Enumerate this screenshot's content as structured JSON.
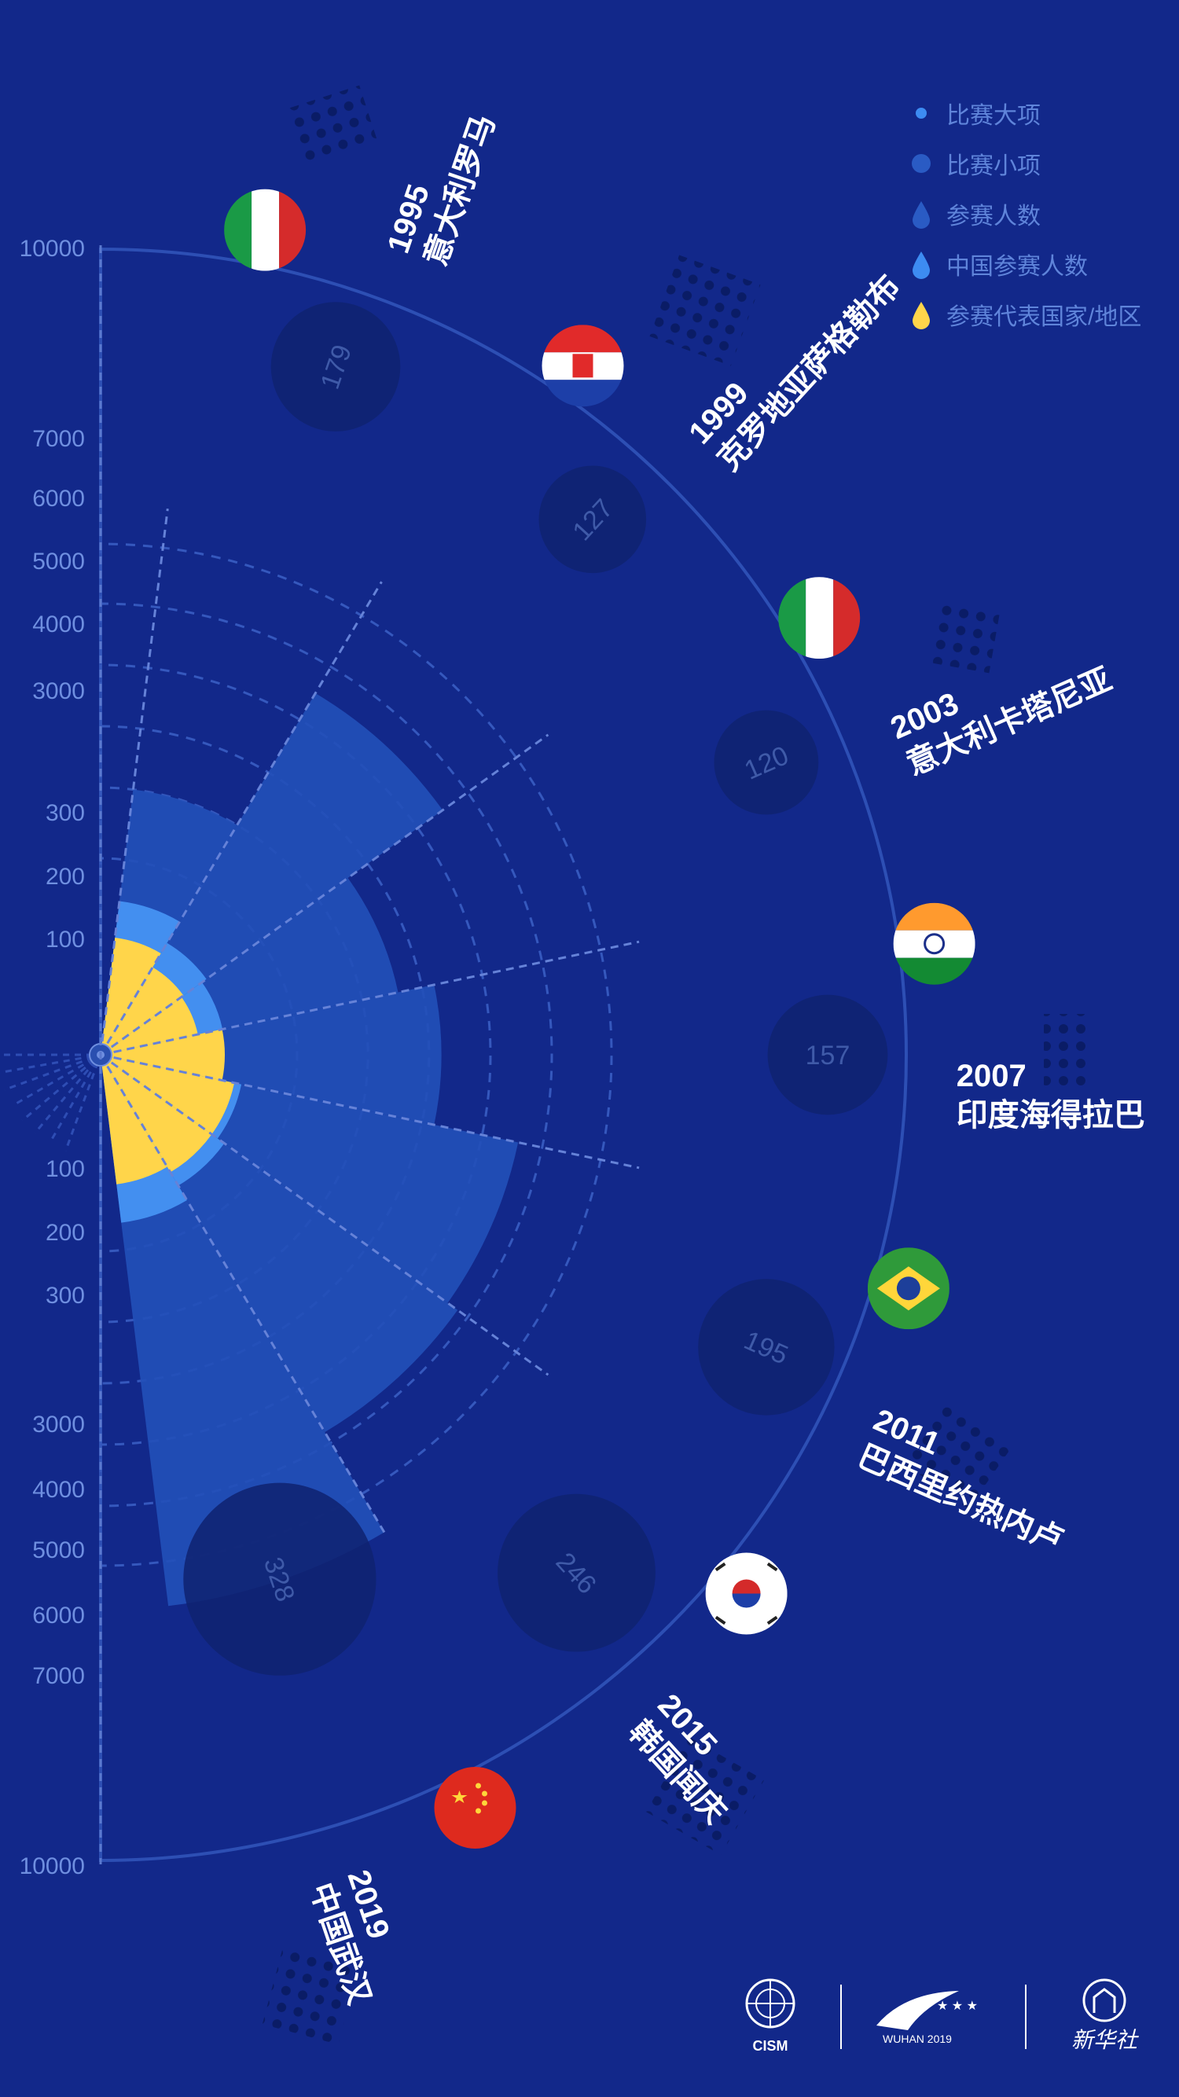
{
  "legend": {
    "items": [
      {
        "label": "比赛大项",
        "shape": "dot-small",
        "color": "#3d8cf2"
      },
      {
        "label": "比赛小项",
        "shape": "dot-large",
        "color": "#2a5bc4"
      },
      {
        "label": "参赛人数",
        "shape": "drop",
        "color": "#2a5bc4"
      },
      {
        "label": "中国参赛人数",
        "shape": "drop",
        "color": "#3d8cf2"
      },
      {
        "label": "参赛代表国家/地区",
        "shape": "drop",
        "color": "#ffd54a"
      }
    ]
  },
  "chart_data": {
    "type": "polar-bar",
    "categories": [
      "1995",
      "1999",
      "2003",
      "2007",
      "2011",
      "2015",
      "2019"
    ],
    "locations": [
      "意大利罗马",
      "克罗地亚萨格勒布",
      "意大利卡塔尼亚",
      "印度海得拉巴",
      "巴西里约热内卢",
      "韩国闻庆",
      "中国武汉"
    ],
    "flags": [
      "italy-flag",
      "croatia-flag",
      "italy-flag",
      "india-flag",
      "brazil-flag",
      "korea-flag",
      "china-flag"
    ],
    "series": [
      {
        "name": "参赛人数",
        "values": [
          4000,
          6500,
          4600,
          5200,
          6600,
          6800,
          8700
        ]
      },
      {
        "name": "中国参赛人数",
        "values": [
          210,
          165,
          155,
          150,
          190,
          205,
          236
        ]
      },
      {
        "name": "参赛代表国家/地区",
        "values": [
          95,
          82,
          80,
          100,
          110,
          110,
          105
        ]
      },
      {
        "name": "比赛小项",
        "values": [
          179,
          127,
          120,
          157,
          195,
          246,
          328
        ]
      }
    ],
    "axis_ticks_top": [
      "10000",
      "7000",
      "6000",
      "5000",
      "4000",
      "3000",
      "300",
      "200",
      "100"
    ],
    "axis_ticks_bottom": [
      "100",
      "200",
      "300",
      "3000",
      "4000",
      "5000",
      "6000",
      "7000",
      "10000"
    ],
    "colors": {
      "background": "#12288a",
      "participants": "#2250b8",
      "china": "#438ff0",
      "countries": "#ffd54a",
      "events": "#0f2270"
    }
  },
  "footer": {
    "logo1_text": "CISM",
    "logo2_text": "WUHAN 2019",
    "logo3_text": "新华社"
  }
}
